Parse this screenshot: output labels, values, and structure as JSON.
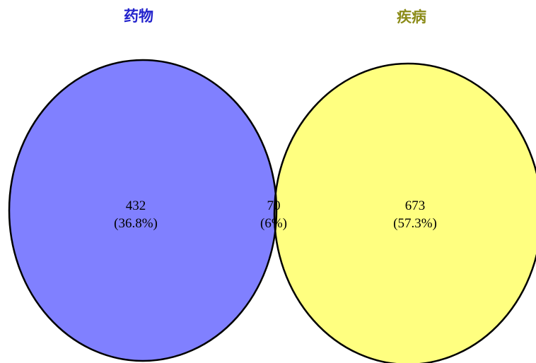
{
  "sets": [
    {
      "label": "药物",
      "color": "#8080ff",
      "label_color": "#2222cc"
    },
    {
      "label": "疾病",
      "color": "#ffff80",
      "label_color": "#8c8c1a"
    }
  ],
  "intersection_color": "#bfbf80",
  "regions": {
    "left_only": {
      "count": "432",
      "percent": "(36.8%)"
    },
    "overlap": {
      "count": "70",
      "percent": "(6%)"
    },
    "right_only": {
      "count": "673",
      "percent": "(57.3%)"
    }
  }
}
